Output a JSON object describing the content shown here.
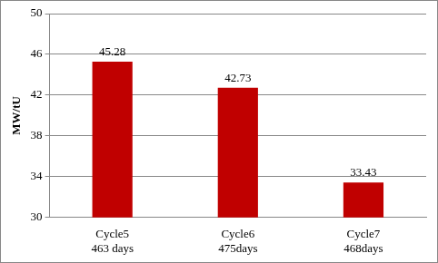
{
  "chart_data": {
    "type": "bar",
    "y_label": "MW/tU",
    "categories": [
      "Cycle5\n463 days",
      "Cycle6\n475days",
      "Cycle7\n468days"
    ],
    "values": [
      45.28,
      42.73,
      33.43
    ],
    "color": "#c00000",
    "ylim": [
      30,
      50
    ],
    "yticks": [
      30,
      34,
      38,
      42,
      46,
      50
    ],
    "grid": true,
    "data_labels": true
  }
}
